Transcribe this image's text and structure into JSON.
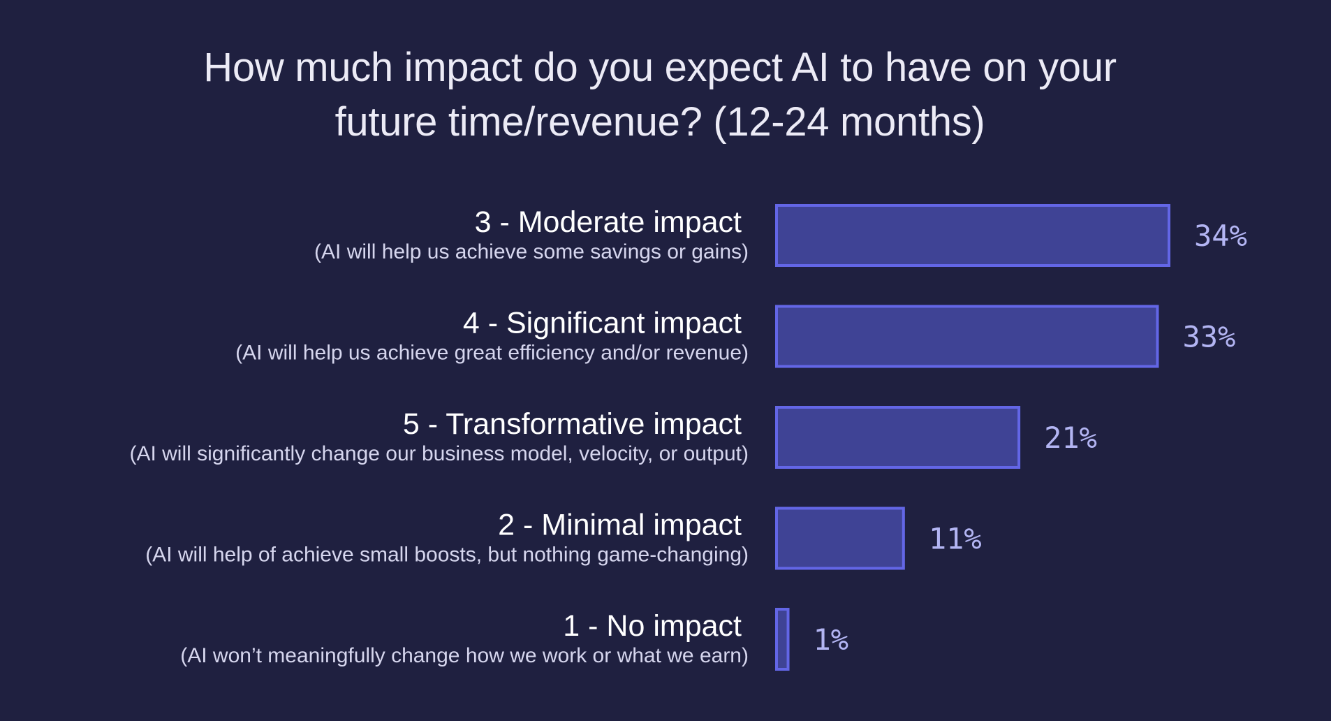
{
  "chart_data": {
    "type": "bar",
    "orientation": "horizontal",
    "title": "How much impact do you expect AI to have on your future time/revenue? (12-24 months)",
    "title_lines": [
      "How much impact do you expect AI to have on your",
      "future time/revenue? (12-24 months)"
    ],
    "categories": [
      "3 - Moderate impact",
      "4 - Significant impact",
      "5 - Transformative impact",
      "2 - Minimal impact",
      "1 - No impact"
    ],
    "descriptions": [
      "(AI will help us achieve some savings or gains)",
      "(AI will help us achieve great efficiency and/or revenue)",
      "(AI will significantly change our business model, velocity, or output)",
      "(AI will help of achieve small boosts, but nothing game-changing)",
      "(AI won’t meaningfully change how we work or what we earn)"
    ],
    "values": [
      34,
      33,
      21,
      11,
      1
    ],
    "value_labels": [
      "34%",
      "33%",
      "21%",
      "11%",
      "1%"
    ],
    "unit": "%",
    "xlim": [
      0,
      34
    ],
    "grid": false,
    "legend": "none",
    "xlabel": "",
    "ylabel": ""
  },
  "colors": {
    "background": "#1f2040",
    "bar_fill": "#3f4395",
    "bar_stroke": "#6366e6",
    "value_label": "#b3b5f3",
    "category_label": "#ffffff",
    "description_label": "#d6d6ee",
    "title": "#ecebf6"
  }
}
